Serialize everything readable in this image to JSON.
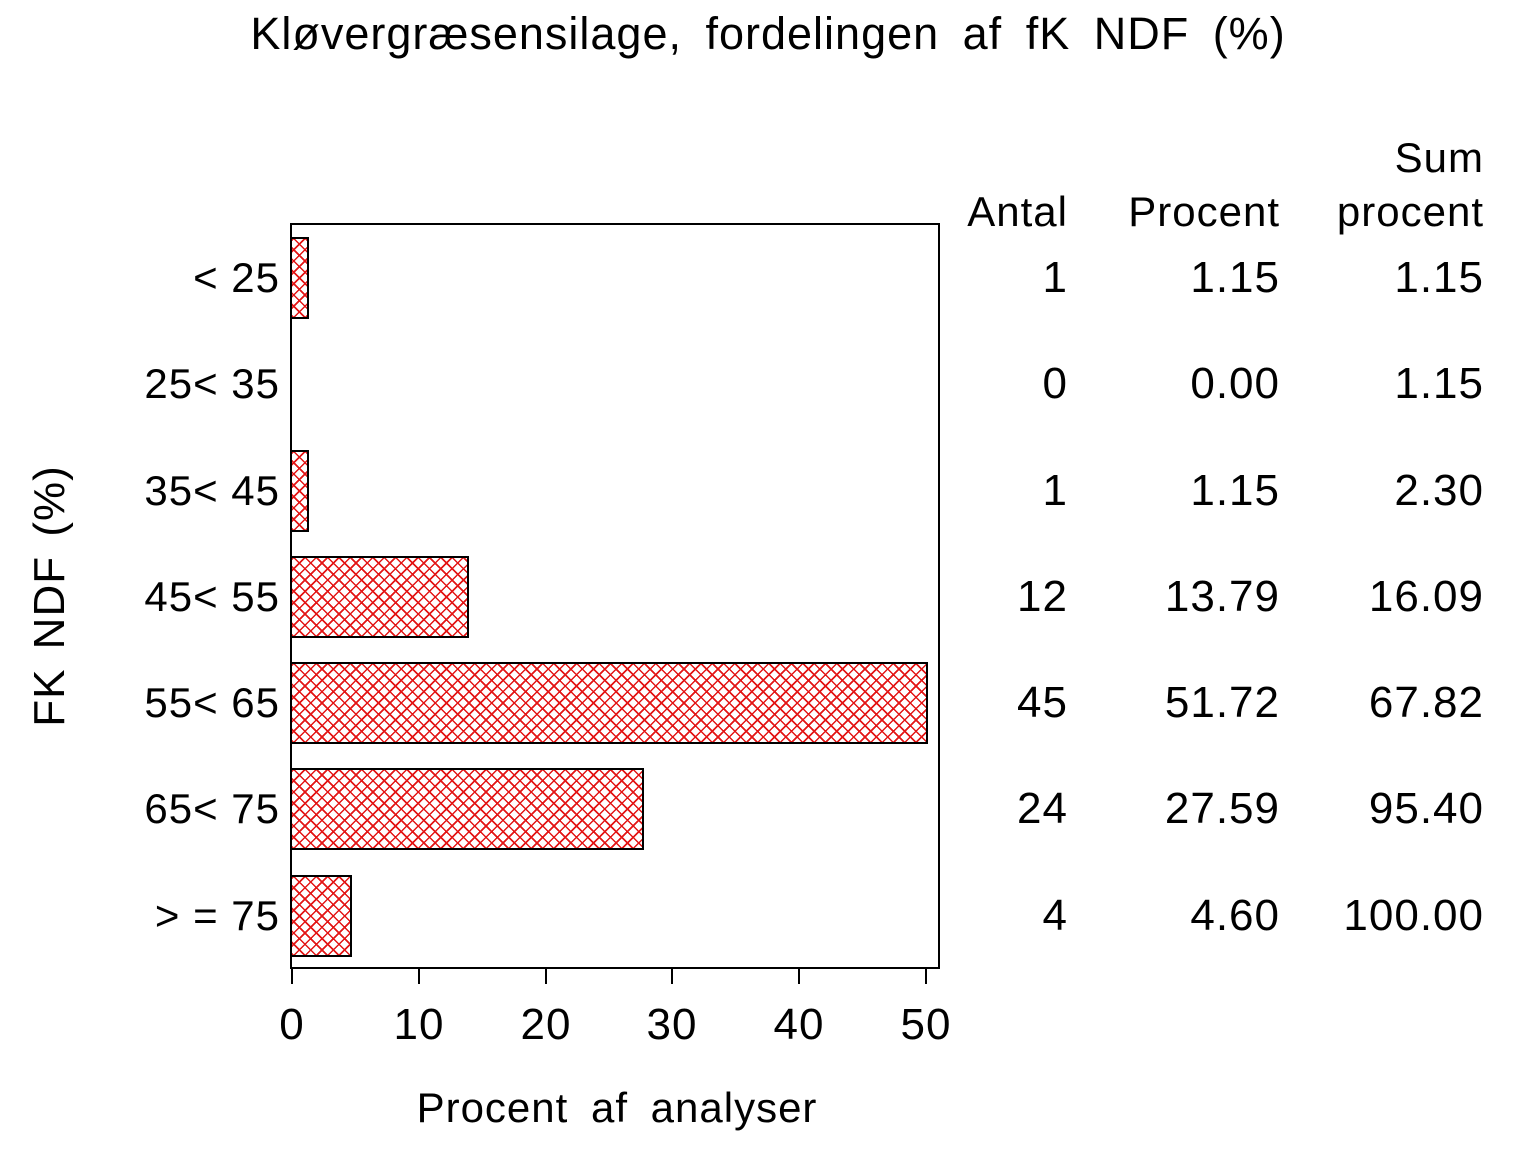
{
  "title": "Kløvergræsensilage, fordelingen af fK NDF (%)",
  "chart_data": {
    "type": "bar",
    "orientation": "horizontal",
    "title": "Kløvergræsensilage, fordelingen af fK NDF (%)",
    "xlabel": "Procent af analyser",
    "ylabel": "FK NDF (%)",
    "categories": [
      "< 25",
      "25< 35",
      "35< 45",
      "45< 55",
      "55< 65",
      "65< 75",
      "> = 75"
    ],
    "values": [
      1.15,
      0.0,
      1.15,
      13.79,
      51.72,
      27.59,
      4.6
    ],
    "xticks": [
      0,
      10,
      20,
      30,
      40,
      50
    ],
    "xlim": [
      0,
      50
    ],
    "bars_clipped_at_axis_max": true,
    "grid": false,
    "bar_fill": "diagonal-crosshatch",
    "bar_color": "#e31616",
    "bar_border_color": "#000000",
    "frame_color": "#000000",
    "background_color": "#ffffff"
  },
  "table": {
    "header_sum_line1": "Sum",
    "headers": {
      "antal": "Antal",
      "procent": "Procent",
      "sum_procent": "procent"
    },
    "rows": [
      {
        "label": "< 25",
        "antal": "1",
        "procent": "1.15",
        "sum": "1.15"
      },
      {
        "label": "25< 35",
        "antal": "0",
        "procent": "0.00",
        "sum": "1.15"
      },
      {
        "label": "35< 45",
        "antal": "1",
        "procent": "1.15",
        "sum": "2.30"
      },
      {
        "label": "45< 55",
        "antal": "12",
        "procent": "13.79",
        "sum": "16.09"
      },
      {
        "label": "55< 65",
        "antal": "45",
        "procent": "51.72",
        "sum": "67.82"
      },
      {
        "label": "65< 75",
        "antal": "24",
        "procent": "27.59",
        "sum": "95.40"
      },
      {
        "label": "> = 75",
        "antal": "4",
        "procent": "4.60",
        "sum": "100.00"
      }
    ]
  }
}
